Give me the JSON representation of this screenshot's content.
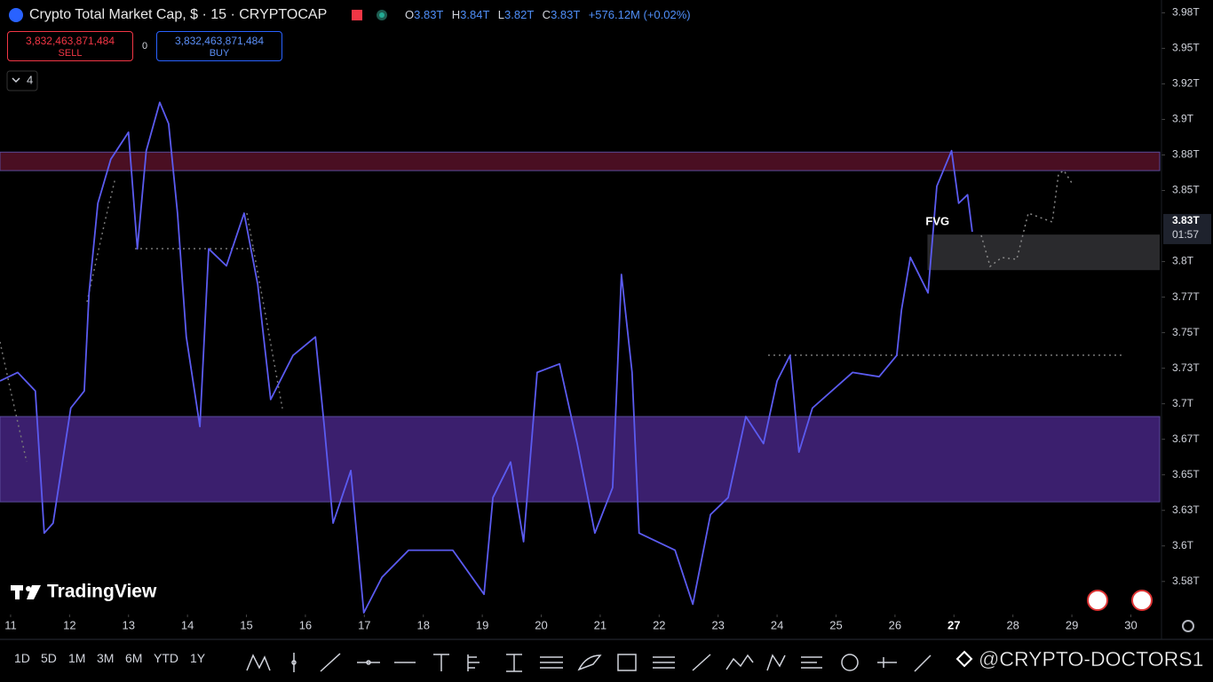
{
  "header": {
    "title": "Crypto Total Market Cap, $ · 15 · CRYPTOCAP",
    "ohlc": [
      {
        "key": "O",
        "value": "3.83T"
      },
      {
        "key": "H",
        "value": "3.84T"
      },
      {
        "key": "L",
        "value": "3.82T"
      },
      {
        "key": "C",
        "value": "3.83T"
      }
    ],
    "change": "+576.12M (+0.02%)"
  },
  "trade": {
    "sell_price": "3,832,463,871,484",
    "sell_label": "SELL",
    "spread": "0",
    "buy_price": "3,832,463,871,484",
    "buy_label": "BUY"
  },
  "indicators_count": "4",
  "logo": "TradingView",
  "watermark": "@CRYPTO-DOCTORS1",
  "toolbar": {
    "timeframes": [
      "1D",
      "5D",
      "1M",
      "3M",
      "6M",
      "YTD",
      "1Y"
    ]
  },
  "chart_data": {
    "type": "line",
    "color": "#5b5bf0",
    "x": [
      10.82,
      11.12,
      11.42,
      11.57,
      11.72,
      12.02,
      12.25,
      12.33,
      12.48,
      12.7,
      13.0,
      13.15,
      13.3,
      13.53,
      13.68,
      13.83,
      13.98,
      14.21,
      14.36,
      14.66,
      14.96,
      15.19,
      15.41,
      15.79,
      16.17,
      16.32,
      16.47,
      16.77,
      16.99,
      17.3,
      17.75,
      18.5,
      19.03,
      19.18,
      19.48,
      19.7,
      19.93,
      20.31,
      20.61,
      20.91,
      21.21,
      21.36,
      21.54,
      21.66,
      22.27,
      22.57,
      22.87,
      23.17,
      23.47,
      23.77,
      24.0,
      24.22,
      24.37,
      24.6,
      25.28,
      25.73,
      26.03,
      26.11,
      26.26,
      26.56,
      26.71,
      26.96,
      27.08,
      27.23,
      27.31
    ],
    "values": [
      3.716,
      3.722,
      3.709,
      3.609,
      3.616,
      3.697,
      3.709,
      3.778,
      3.841,
      3.872,
      3.891,
      3.809,
      3.878,
      3.912,
      3.897,
      3.834,
      3.747,
      3.684,
      3.809,
      3.797,
      3.834,
      3.784,
      3.703,
      3.734,
      3.747,
      3.684,
      3.616,
      3.653,
      3.553,
      3.578,
      3.597,
      3.597,
      3.566,
      3.634,
      3.659,
      3.603,
      3.722,
      3.728,
      3.672,
      3.609,
      3.641,
      3.791,
      3.722,
      3.609,
      3.597,
      3.559,
      3.622,
      3.634,
      3.691,
      3.672,
      3.716,
      3.734,
      3.666,
      3.697,
      3.722,
      3.719,
      3.734,
      3.766,
      3.803,
      3.778,
      3.853,
      3.878,
      3.841,
      3.847,
      3.821
    ],
    "xlim": [
      10.82,
      30.52
    ],
    "ylim": [
      3.553,
      3.984
    ],
    "xticks": [
      11,
      12,
      13,
      14,
      15,
      16,
      17,
      18,
      19,
      20,
      21,
      22,
      23,
      24,
      25,
      26,
      27,
      28,
      29,
      30
    ],
    "yticks": [
      {
        "value": 3.975,
        "label": "3.98T"
      },
      {
        "value": 3.95,
        "label": "3.95T"
      },
      {
        "value": 3.925,
        "label": "3.92T"
      },
      {
        "value": 3.9,
        "label": "3.9T"
      },
      {
        "value": 3.875,
        "label": "3.88T"
      },
      {
        "value": 3.85,
        "label": "3.85T"
      },
      {
        "value": 3.8,
        "label": "3.8T"
      },
      {
        "value": 3.775,
        "label": "3.77T"
      },
      {
        "value": 3.75,
        "label": "3.75T"
      },
      {
        "value": 3.725,
        "label": "3.73T"
      },
      {
        "value": 3.7,
        "label": "3.7T"
      },
      {
        "value": 3.675,
        "label": "3.67T"
      },
      {
        "value": 3.65,
        "label": "3.65T"
      },
      {
        "value": 3.625,
        "label": "3.63T"
      },
      {
        "value": 3.6,
        "label": "3.6T"
      },
      {
        "value": 3.575,
        "label": "3.58T"
      }
    ],
    "last_price": {
      "label": "3.83T",
      "countdown": "01:57"
    },
    "zones": [
      {
        "ylim": [
          3.864,
          3.877
        ],
        "color": "#4a0f22"
      },
      {
        "ylim": [
          3.631,
          3.691
        ],
        "color": "#3b1f6e"
      }
    ],
    "fvg": {
      "label": "FVG",
      "xlim": [
        26.55,
        30.52
      ],
      "ylim": [
        3.794,
        3.819
      ],
      "color": "#2a2a2d"
    }
  }
}
